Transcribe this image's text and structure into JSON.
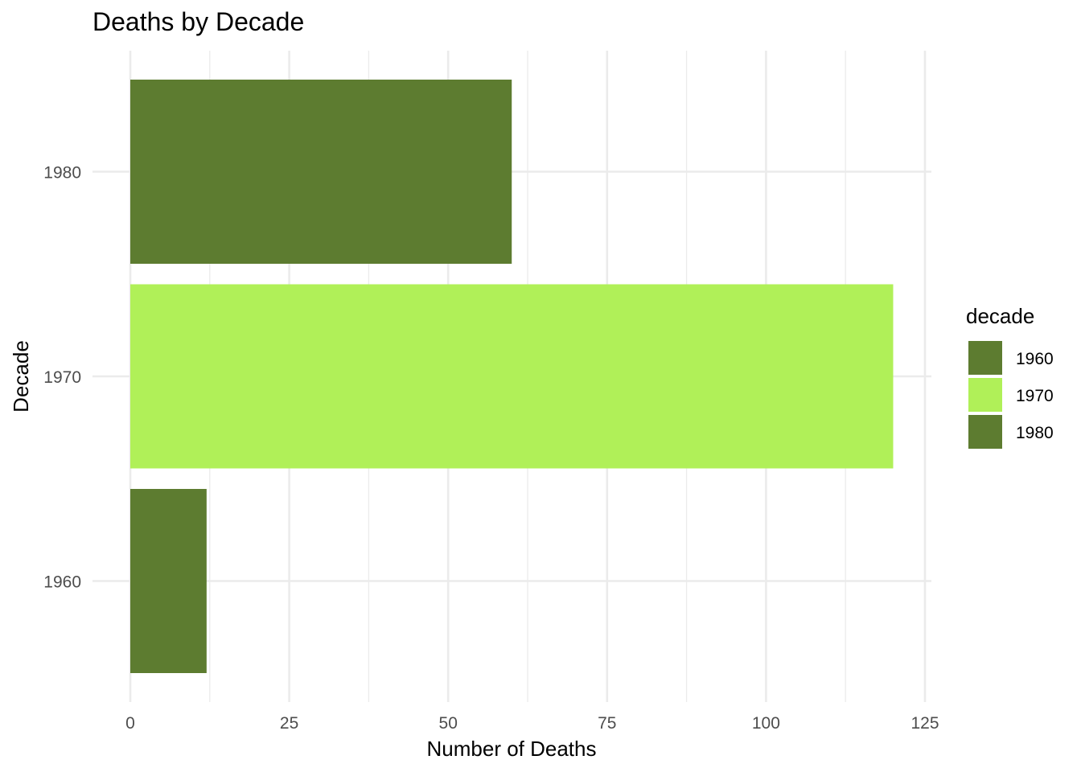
{
  "chart_data": {
    "type": "bar",
    "orientation": "horizontal",
    "title": "Deaths by Decade",
    "xlabel": "Number of Deaths",
    "ylabel": "Decade",
    "categories": [
      "1960",
      "1970",
      "1980"
    ],
    "values": [
      12,
      120,
      60
    ],
    "bar_colors": [
      "#5d7c30",
      "#b0f058",
      "#5d7c30"
    ],
    "xlim": [
      0,
      125
    ],
    "xticks": [
      0,
      25,
      50,
      75,
      100,
      125
    ],
    "grid": true,
    "legend": {
      "title": "decade",
      "placement": "right",
      "items": [
        {
          "label": "1960",
          "color": "#5d7c30"
        },
        {
          "label": "1970",
          "color": "#b0f058"
        },
        {
          "label": "1980",
          "color": "#5d7c30"
        }
      ]
    }
  }
}
